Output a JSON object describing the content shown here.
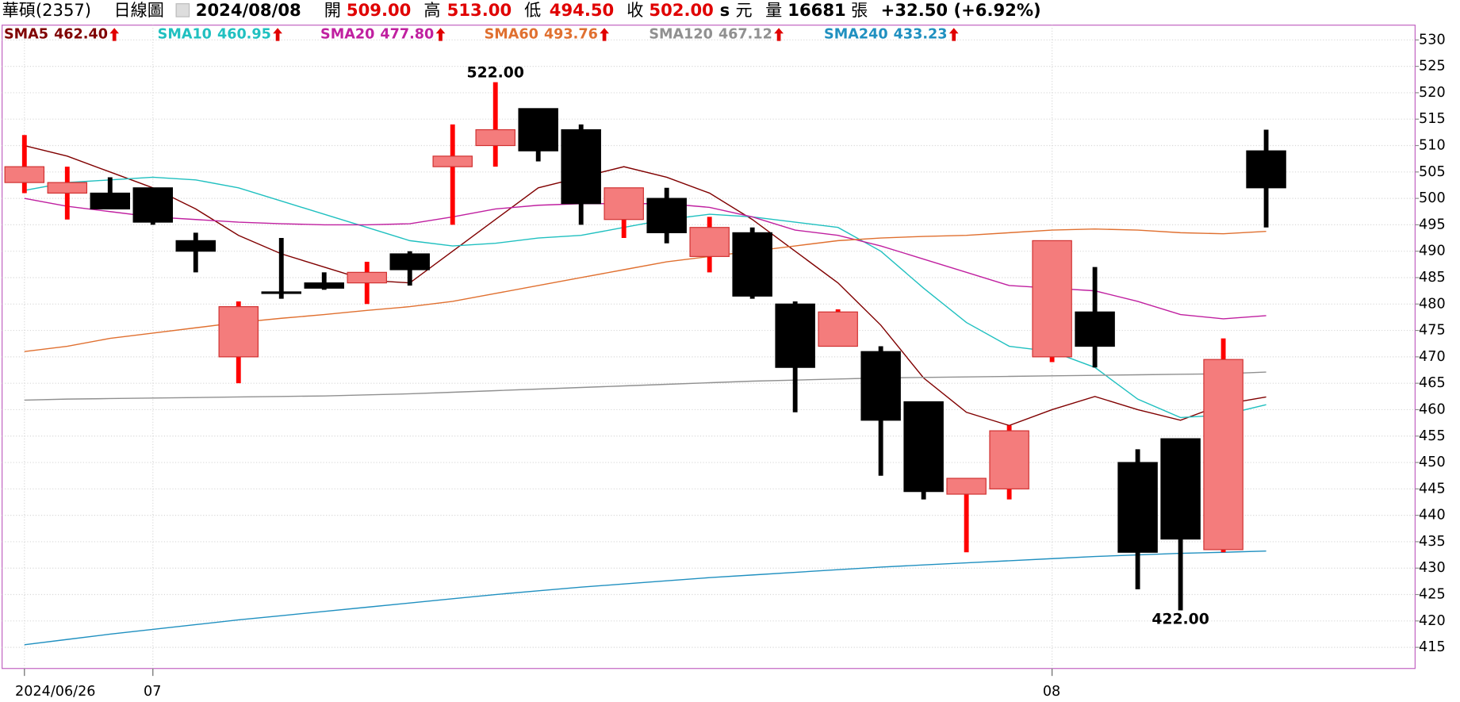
{
  "header": {
    "name": "華碩(2357)",
    "period": "日線圖",
    "date": "2024/08/08",
    "open_label": "開",
    "open": "509.00",
    "high_label": "高",
    "high": "513.00",
    "low_label": "低",
    "low": "494.50",
    "close_label": "收",
    "close": "502.00",
    "s": "s",
    "currency": "元",
    "volume_label": "量",
    "volume": "16681",
    "volume_unit": "張",
    "change": "+32.50 (+6.92%)"
  },
  "chart_data": {
    "type": "candlestick",
    "categories": [
      "2024/06/26",
      null,
      null,
      "07",
      null,
      null,
      null,
      null,
      null,
      null,
      null,
      null,
      null,
      null,
      null,
      null,
      null,
      null,
      null,
      null,
      null,
      null,
      null,
      null,
      "08",
      null,
      null,
      null,
      null,
      null
    ],
    "open": [
      503,
      501,
      501,
      502,
      492,
      470,
      482.3,
      484,
      484,
      489.5,
      506,
      510,
      517,
      513,
      496,
      500,
      489,
      493.5,
      480,
      472,
      471,
      461.5,
      444,
      445,
      470,
      478.5,
      450,
      454.5,
      433.5,
      509
    ],
    "high": [
      512,
      506,
      504,
      502,
      493.5,
      480.5,
      492.5,
      486,
      488,
      490,
      514,
      522,
      517,
      514,
      502,
      502,
      496.5,
      494.5,
      480.5,
      479,
      472,
      461.5,
      447,
      457,
      492,
      487,
      452.5,
      454.5,
      473.5,
      513
    ],
    "low": [
      501,
      496,
      498,
      495,
      486,
      465,
      481,
      482.7,
      480,
      483.5,
      495,
      506,
      507,
      495,
      492.5,
      491.5,
      486,
      481,
      459.5,
      472,
      447.5,
      443,
      433,
      443,
      469,
      468,
      426,
      422,
      433,
      494.5
    ],
    "close": [
      506,
      503,
      498,
      495.5,
      490,
      479.5,
      482,
      483,
      486,
      486.5,
      508,
      513,
      509,
      499,
      502,
      493.5,
      494.5,
      481.5,
      468,
      478.5,
      458,
      444.5,
      447,
      456,
      492,
      472,
      433,
      435.5,
      469.5,
      502
    ],
    "up_color": "#f47c7c",
    "up_edge": "#d03030",
    "up_wick": "#ff0000",
    "down_color": "#000000",
    "series": [
      {
        "name": "SMA5",
        "color": "#800000",
        "legend_value": "462.40",
        "values": [
          510,
          508,
          505,
          502,
          498,
          493,
          489.5,
          487,
          484.5,
          484,
          490,
          496,
          502,
          504,
          506,
          504,
          501,
          496,
          490,
          484,
          476,
          466,
          459.5,
          457,
          460,
          462.5,
          460,
          458,
          461,
          462.4
        ]
      },
      {
        "name": "SMA10",
        "color": "#20c0c0",
        "legend_value": "460.95",
        "values": [
          501.5,
          503,
          503.5,
          504,
          503.5,
          502,
          499.5,
          497,
          494.5,
          492,
          491,
          491.5,
          492.5,
          493,
          494.5,
          496,
          497,
          496.5,
          495.5,
          494.5,
          490,
          483,
          476.5,
          472,
          471,
          468,
          462,
          458.5,
          459,
          460.95
        ]
      },
      {
        "name": "SMA20",
        "color": "#c020a0",
        "legend_value": "477.80",
        "values": [
          500,
          498.5,
          497.5,
          496.5,
          496,
          495.5,
          495.2,
          495,
          495,
          495.2,
          496.5,
          498,
          498.7,
          499,
          499,
          499,
          498.3,
          496.5,
          494,
          493,
          491,
          488.5,
          486,
          483.5,
          483,
          482.5,
          480.5,
          478,
          477.2,
          477.8
        ]
      },
      {
        "name": "SMA60",
        "color": "#e07030",
        "legend_value": "493.76",
        "values": [
          471,
          472,
          473.5,
          474.5,
          475.5,
          476.5,
          477.3,
          478,
          478.8,
          479.5,
          480.5,
          482,
          483.5,
          485,
          486.5,
          488,
          489,
          490,
          491,
          492,
          492.5,
          492.8,
          493,
          493.5,
          494,
          494.2,
          494,
          493.5,
          493.3,
          493.76
        ]
      },
      {
        "name": "SMA120",
        "color": "#909090",
        "legend_value": "467.12",
        "values": [
          461.8,
          462,
          462.1,
          462.2,
          462.3,
          462.4,
          462.5,
          462.6,
          462.8,
          463,
          463.3,
          463.6,
          463.9,
          464.2,
          464.5,
          464.8,
          465.1,
          465.4,
          465.6,
          465.8,
          466,
          466.1,
          466.2,
          466.3,
          466.4,
          466.5,
          466.6,
          466.7,
          466.8,
          467.12
        ]
      },
      {
        "name": "SMA240",
        "color": "#2090c0",
        "legend_value": "433.23",
        "values": [
          415.5,
          416.5,
          417.5,
          418.4,
          419.3,
          420.2,
          421,
          421.8,
          422.6,
          423.4,
          424.2,
          425,
          425.7,
          426.4,
          427,
          427.6,
          428.2,
          428.7,
          429.2,
          429.7,
          430.2,
          430.6,
          431,
          431.4,
          431.8,
          432.2,
          432.5,
          432.8,
          433,
          433.23
        ]
      }
    ],
    "annotations": [
      {
        "text": "522.00",
        "index": 11,
        "at": "high"
      },
      {
        "text": "422.00",
        "index": 27,
        "at": "low"
      }
    ],
    "ylim": [
      411,
      532.8
    ],
    "yticks": [
      415,
      420,
      425,
      430,
      435,
      440,
      445,
      450,
      455,
      460,
      465,
      470,
      475,
      480,
      485,
      490,
      495,
      500,
      505,
      510,
      515,
      520,
      525,
      530
    ],
    "grid": true
  }
}
